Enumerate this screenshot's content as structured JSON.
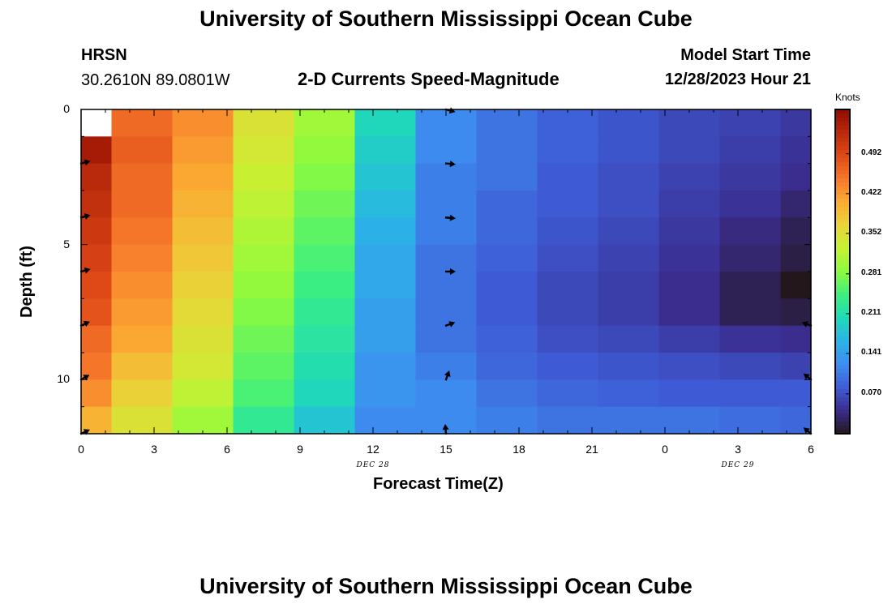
{
  "page": {
    "title": "University of Southern Mississippi Ocean Cube",
    "station": "HRSN",
    "location": "30.2610N  89.0801W",
    "chart_heading": "2-D Currents Speed-Magnitude",
    "model_label": "Model Start Time",
    "model_time": "12/28/2023 Hour 21",
    "bottom_title": "University of Southern Mississippi Ocean Cube"
  },
  "chart_data": {
    "type": "heatmap",
    "title": "2-D Currents Speed-Magnitude",
    "xlabel": "Forecast Time(Z)",
    "ylabel": "Depth (ft)",
    "x_hours": [
      0,
      3,
      6,
      9,
      12,
      15,
      18,
      21,
      24,
      27,
      30
    ],
    "x_tick_labels": [
      "0",
      "3",
      "6",
      "9",
      "12",
      "15",
      "18",
      "21",
      "0",
      "3",
      "6"
    ],
    "x_range": [
      0,
      30
    ],
    "day_labels": [
      {
        "text": "DEC 28",
        "hour": 12
      },
      {
        "text": "DEC 29",
        "hour": 27
      }
    ],
    "y_ticks": [
      "0",
      "5",
      "10"
    ],
    "y_range": [
      0,
      12
    ],
    "time_edges_hours": [
      0,
      1.25,
      3.75,
      6.25,
      8.75,
      11.25,
      13.75,
      16.25,
      18.75,
      21.25,
      23.75,
      26.25,
      28.75,
      30
    ],
    "depth_edges_ft": [
      0,
      1,
      2,
      3,
      4,
      5,
      6,
      7,
      8,
      9,
      10,
      11,
      12
    ],
    "speed_knots": [
      [
        null,
        0.46,
        0.43,
        0.35,
        0.3,
        0.2,
        0.12,
        0.1,
        0.085,
        0.075,
        0.065,
        0.06,
        0.05
      ],
      [
        0.55,
        0.47,
        0.42,
        0.34,
        0.29,
        0.19,
        0.12,
        0.1,
        0.085,
        0.075,
        0.065,
        0.055,
        0.045
      ],
      [
        0.53,
        0.46,
        0.41,
        0.33,
        0.28,
        0.18,
        0.11,
        0.1,
        0.08,
        0.07,
        0.06,
        0.05,
        0.04
      ],
      [
        0.52,
        0.46,
        0.4,
        0.32,
        0.27,
        0.17,
        0.11,
        0.09,
        0.08,
        0.07,
        0.055,
        0.045,
        0.03
      ],
      [
        0.51,
        0.45,
        0.39,
        0.31,
        0.26,
        0.16,
        0.11,
        0.09,
        0.075,
        0.065,
        0.05,
        0.035,
        0.02
      ],
      [
        0.5,
        0.44,
        0.38,
        0.3,
        0.25,
        0.15,
        0.1,
        0.085,
        0.07,
        0.06,
        0.045,
        0.03,
        0.015
      ],
      [
        0.49,
        0.43,
        0.37,
        0.29,
        0.24,
        0.15,
        0.1,
        0.08,
        0.065,
        0.055,
        0.04,
        0.02,
        0.0
      ],
      [
        0.48,
        0.42,
        0.36,
        0.28,
        0.23,
        0.14,
        0.1,
        0.08,
        0.065,
        0.055,
        0.04,
        0.02,
        0.015
      ],
      [
        0.46,
        0.41,
        0.35,
        0.27,
        0.22,
        0.14,
        0.1,
        0.085,
        0.07,
        0.065,
        0.055,
        0.045,
        0.04
      ],
      [
        0.45,
        0.39,
        0.34,
        0.26,
        0.21,
        0.13,
        0.11,
        0.09,
        0.08,
        0.075,
        0.07,
        0.065,
        0.06
      ],
      [
        0.43,
        0.37,
        0.32,
        0.25,
        0.2,
        0.13,
        0.12,
        0.1,
        0.09,
        0.085,
        0.08,
        0.08,
        0.08
      ],
      [
        0.4,
        0.35,
        0.3,
        0.23,
        0.18,
        0.12,
        0.12,
        0.11,
        0.1,
        0.1,
        0.1,
        0.095,
        0.09
      ]
    ],
    "vectors": [
      {
        "hour": 0,
        "depth": 2,
        "angle": -15
      },
      {
        "hour": 0,
        "depth": 4,
        "angle": -15
      },
      {
        "hour": 0,
        "depth": 6,
        "angle": -15
      },
      {
        "hour": 0,
        "depth": 8,
        "angle": -25
      },
      {
        "hour": 0,
        "depth": 10,
        "angle": -30
      },
      {
        "hour": 0,
        "depth": 12,
        "angle": -25
      },
      {
        "hour": 15,
        "depth": 0,
        "angle": 15
      },
      {
        "hour": 15,
        "depth": 2,
        "angle": 5
      },
      {
        "hour": 15,
        "depth": 4,
        "angle": 5
      },
      {
        "hour": 15,
        "depth": 6,
        "angle": 0
      },
      {
        "hour": 15,
        "depth": 8,
        "angle": -20
      },
      {
        "hour": 15,
        "depth": 10,
        "angle": -70
      },
      {
        "hour": 15,
        "depth": 12,
        "angle": -95
      },
      {
        "hour": 30,
        "depth": 8,
        "angle": 200
      },
      {
        "hour": 30,
        "depth": 10,
        "angle": 220
      },
      {
        "hour": 30,
        "depth": 12,
        "angle": 220
      }
    ],
    "colorbar": {
      "label": "Knots",
      "ticks": [
        "0.492",
        "0.422",
        "0.352",
        "0.281",
        "0.211",
        "0.141",
        "0.070"
      ],
      "tick_values": [
        0.492,
        0.422,
        0.352,
        0.281,
        0.211,
        0.141,
        0.07
      ],
      "range": [
        0.0,
        0.57
      ]
    },
    "colors": {
      "stops": [
        "#23171b",
        "#3a2d8f",
        "#3e5cd6",
        "#3d8ef0",
        "#2ab4e6",
        "#1fdab8",
        "#3ef07e",
        "#8cfa3e",
        "#c5f232",
        "#e9d539",
        "#faac33",
        "#f6772a",
        "#df4a17",
        "#ba2a0b",
        "#900c00"
      ],
      "missing": "#ffffff",
      "frame": "#000000",
      "arrow": "#000000"
    }
  }
}
